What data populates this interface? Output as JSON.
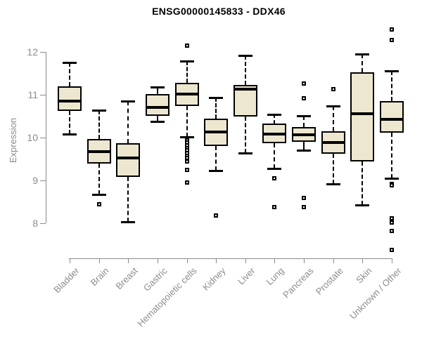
{
  "chart_data": {
    "type": "boxplot",
    "title": "ENSG00000145833 - DDX46",
    "ylabel": "Expression",
    "yticks": [
      8,
      9,
      10,
      11,
      12
    ],
    "axis_drawn_range": [
      8,
      12
    ],
    "ylim": [
      7.3,
      12.6
    ],
    "grid": false,
    "legend": "none",
    "categories": [
      "Bladder",
      "Brain",
      "Breast",
      "Gastric",
      "Hematopoietic cells",
      "Kidney",
      "Liver",
      "Lung",
      "Pancreas",
      "Prostate",
      "Skin",
      "Unknown / Other"
    ],
    "series": [
      {
        "category": "Bladder",
        "whisker_low": 10.08,
        "q1": 10.62,
        "median": 10.86,
        "q3": 11.2,
        "whisker_high": 11.76,
        "outliers": []
      },
      {
        "category": "Brain",
        "whisker_low": 8.67,
        "q1": 9.39,
        "median": 9.68,
        "q3": 9.96,
        "whisker_high": 10.64,
        "outliers": [
          8.45
        ]
      },
      {
        "category": "Breast",
        "whisker_low": 8.03,
        "q1": 9.08,
        "median": 9.52,
        "q3": 9.87,
        "whisker_high": 10.86,
        "outliers": []
      },
      {
        "category": "Gastric",
        "whisker_low": 10.38,
        "q1": 10.51,
        "median": 10.71,
        "q3": 11.02,
        "whisker_high": 11.18,
        "outliers": []
      },
      {
        "category": "Hematopoietic cells",
        "whisker_low": 10.02,
        "q1": 10.74,
        "median": 11.02,
        "q3": 11.28,
        "whisker_high": 11.79,
        "outliers": [
          12.14,
          9.93,
          9.88,
          9.82,
          9.76,
          9.7,
          9.64,
          9.58,
          9.52,
          9.45,
          9.25,
          8.95
        ]
      },
      {
        "category": "Kidney",
        "whisker_low": 9.23,
        "q1": 9.8,
        "median": 10.13,
        "q3": 10.44,
        "whisker_high": 10.93,
        "outliers": [
          8.18
        ]
      },
      {
        "category": "Liver",
        "whisker_low": 9.64,
        "q1": 10.49,
        "median": 11.13,
        "q3": 11.23,
        "whisker_high": 11.92,
        "outliers": []
      },
      {
        "category": "Lung",
        "whisker_low": 9.28,
        "q1": 9.87,
        "median": 10.08,
        "q3": 10.33,
        "whisker_high": 10.54,
        "outliers": [
          9.05,
          8.37
        ]
      },
      {
        "category": "Pancreas",
        "whisker_low": 9.7,
        "q1": 9.9,
        "median": 10.07,
        "q3": 10.25,
        "whisker_high": 10.51,
        "outliers": [
          11.26,
          10.91,
          8.59,
          8.38
        ]
      },
      {
        "category": "Prostate",
        "whisker_low": 8.92,
        "q1": 9.62,
        "median": 9.88,
        "q3": 10.14,
        "whisker_high": 10.74,
        "outliers": [
          11.13
        ]
      },
      {
        "category": "Skin",
        "whisker_low": 8.43,
        "q1": 9.44,
        "median": 10.55,
        "q3": 11.52,
        "whisker_high": 11.95,
        "outliers": []
      },
      {
        "category": "Unknown / Other",
        "whisker_low": 9.05,
        "q1": 10.11,
        "median": 10.43,
        "q3": 10.85,
        "whisker_high": 11.56,
        "outliers": [
          12.52,
          12.28,
          8.92,
          8.88,
          8.11,
          8.02,
          7.82,
          7.38
        ]
      }
    ],
    "colors": {
      "box_fill": "#ede7d0",
      "box_border": "#000000",
      "median": "#000000",
      "axis": "#8c8c8c",
      "title": "#000000",
      "background": "#ffffff"
    }
  }
}
